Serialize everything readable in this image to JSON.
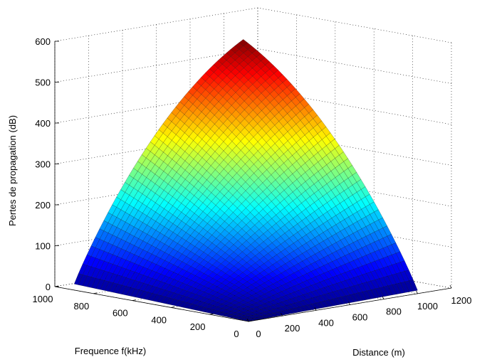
{
  "chart_data": {
    "type": "surface",
    "zlabel": "Pertes de propagation (dB)",
    "ylabel": "Frequence f(kHz)",
    "xlabel": "Distance (m)",
    "x_ticks": [
      "0",
      "200",
      "400",
      "600",
      "800",
      "1000",
      "1200"
    ],
    "y_ticks": [
      "0",
      "200",
      "400",
      "600",
      "800",
      "1000"
    ],
    "z_ticks": [
      "0",
      "100",
      "200",
      "300",
      "400",
      "500",
      "600"
    ],
    "xlim": [
      0,
      1200
    ],
    "ylim": [
      0,
      1000
    ],
    "zlim": [
      0,
      600
    ],
    "grid": true,
    "colormap": "jet",
    "surface_x_range": [
      0,
      1000
    ],
    "surface_y_range": [
      0,
      900
    ],
    "corner_values": [
      {
        "distance": 0,
        "frequency": 0,
        "loss": 0
      },
      {
        "distance": 1000,
        "frequency": 0,
        "loss": 8
      },
      {
        "distance": 0,
        "frequency": 900,
        "loss": 15
      },
      {
        "distance": 1000,
        "frequency": 900,
        "loss": 545
      }
    ],
    "edge_midpoints": [
      {
        "distance": 500,
        "frequency": 0,
        "loss": 4
      },
      {
        "distance": 0,
        "frequency": 450,
        "loss": 8
      },
      {
        "distance": 500,
        "frequency": 900,
        "loss": 200
      },
      {
        "distance": 1000,
        "frequency": 450,
        "loss": 200
      }
    ]
  }
}
